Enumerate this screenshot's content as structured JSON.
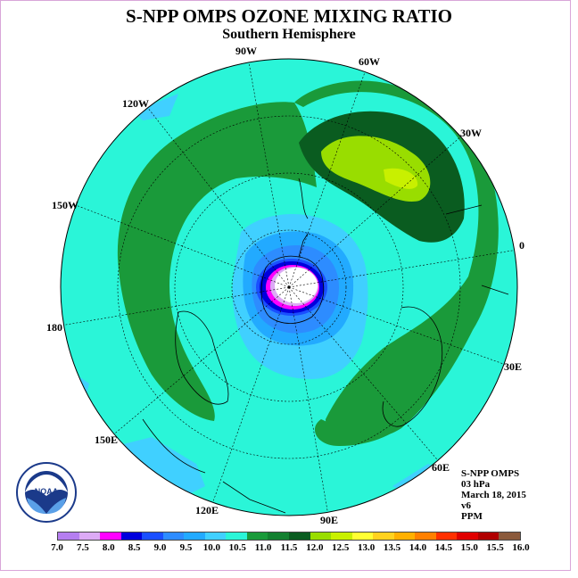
{
  "title": "S-NPP OMPS OZONE MIXING RATIO",
  "subtitle": "Southern Hemisphere",
  "longitude_labels": [
    {
      "text": "90W",
      "id": "lon-90w"
    },
    {
      "text": "60W",
      "id": "lon-60w"
    },
    {
      "text": "30W",
      "id": "lon-30w"
    },
    {
      "text": "0",
      "id": "lon-0"
    },
    {
      "text": "30E",
      "id": "lon-30e"
    },
    {
      "text": "60E",
      "id": "lon-60e"
    },
    {
      "text": "90E",
      "id": "lon-90e"
    },
    {
      "text": "120E",
      "id": "lon-120e"
    },
    {
      "text": "150E",
      "id": "lon-150e"
    },
    {
      "text": "180",
      "id": "lon-180"
    },
    {
      "text": "150W",
      "id": "lon-150w"
    },
    {
      "text": "120W",
      "id": "lon-120w"
    }
  ],
  "info": {
    "line1": "S-NPP OMPS",
    "line2": "03 hPa",
    "line3": "March 18, 2015",
    "line4": "v6",
    "line5": "PPM"
  },
  "logo_text": "NOAA",
  "logo_ring_text": "NATIONAL OCEANIC AND ATMOSPHERIC ADMINISTRATION · U.S. DEPARTMENT OF COMMERCE",
  "colorbar": {
    "colors": [
      "#b57ef0",
      "#dcaaf5",
      "#ff00ff",
      "#0000dd",
      "#1a4fff",
      "#2d8cff",
      "#22aaff",
      "#40d0ff",
      "#2af5d8",
      "#1a9a3a",
      "#138030",
      "#0a5c20",
      "#99dd00",
      "#c8f000",
      "#ffff33",
      "#ffd21e",
      "#ffb000",
      "#ff8000",
      "#ff3000",
      "#e00000",
      "#b00000",
      "#8b5a3c"
    ],
    "tick_labels": [
      "7.0",
      "7.5",
      "8.0",
      "8.5",
      "9.0",
      "9.5",
      "10.0",
      "10.5",
      "11.0",
      "11.5",
      "12.0",
      "12.5",
      "13.0",
      "13.5",
      "14.0",
      "14.5",
      "15.0",
      "15.5",
      "16.0"
    ],
    "unit": "PPM"
  },
  "colors": {
    "background_field": "#2af5d8",
    "band_11_5": "#1a9a3a",
    "band_12_0": "#0a5c20",
    "band_12_5": "#99dd00",
    "band_13_0": "#c8f000",
    "band_10_5": "#40d0ff",
    "band_10_0": "#22aaff",
    "band_9_5": "#2d8cff",
    "band_9_0": "#0000dd",
    "band_8_0": "#ff00ff",
    "band_7_5": "#dcaaf5"
  }
}
